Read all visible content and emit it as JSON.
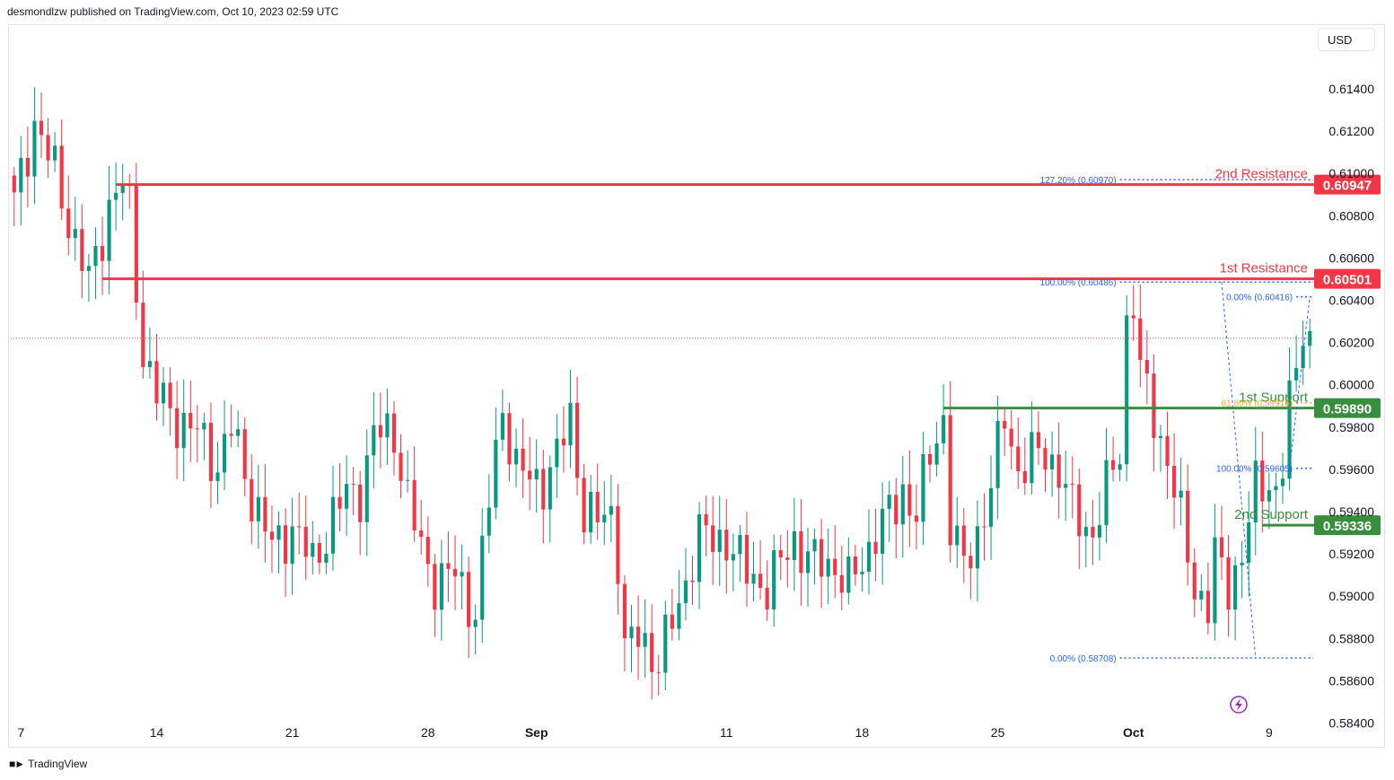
{
  "header": {
    "text": "desmondlzw published on TradingView.com, Oct 10, 2023 02:59 UTC"
  },
  "currency_button": "USD",
  "footer": {
    "brand": "TradingView",
    "logo_icon": "tradingview-logo-icon"
  },
  "colors": {
    "up": "#089981",
    "down": "#f23645",
    "resistance": "#f23645",
    "support": "#388e3c",
    "fib": "#2962ff",
    "fib_golden": "#f9a825",
    "lightning": "#9c27b0"
  },
  "chart_data": {
    "type": "candlestick",
    "symbol_currency": "USD",
    "ylim": [
      0.5833,
      0.6168
    ],
    "y_ticks": [
      "0.61400",
      "0.61200",
      "0.61000",
      "0.60800",
      "0.60600",
      "0.60400",
      "0.60200",
      "0.60000",
      "0.59800",
      "0.59600",
      "0.59400",
      "0.59200",
      "0.59000",
      "0.58800",
      "0.58600",
      "0.58400"
    ],
    "x_ticks": [
      {
        "label": "7",
        "bar": 1
      },
      {
        "label": "14",
        "bar": 21
      },
      {
        "label": "21",
        "bar": 41
      },
      {
        "label": "28",
        "bar": 61
      },
      {
        "label": "Sep",
        "bar": 77,
        "bold": true
      },
      {
        "label": "11",
        "bar": 105
      },
      {
        "label": "18",
        "bar": 125
      },
      {
        "label": "25",
        "bar": 145
      },
      {
        "label": "Oct",
        "bar": 165,
        "bold": true
      },
      {
        "label": "9",
        "bar": 185
      }
    ],
    "levels": [
      {
        "name": "2nd Resistance",
        "value": 0.60947,
        "label": "0.60947",
        "kind": "resistance",
        "from_bar": 15
      },
      {
        "name": "1st Resistance",
        "value": 0.60501,
        "label": "0.60501",
        "kind": "resistance",
        "from_bar": 13
      },
      {
        "name": "1st Support",
        "value": 0.5989,
        "label": "0.59890",
        "kind": "support",
        "from_bar": 137
      },
      {
        "name": "2nd Support",
        "value": 0.59336,
        "label": "0.59336",
        "kind": "support",
        "from_bar": 184
      }
    ],
    "fib_labels": [
      {
        "text": "127.20% (0.60970)",
        "value": 0.6097,
        "from_bar": 163,
        "golden": false
      },
      {
        "text": "100.00% (0.60486)",
        "value": 0.60486,
        "from_bar": 163,
        "golden": false
      },
      {
        "text": "0.00% (0.60416)",
        "value": 0.60416,
        "from_bar": 189,
        "golden": false
      },
      {
        "text": "61.80% (0.59915)",
        "value": 0.59915,
        "from_bar": 189,
        "golden": true
      },
      {
        "text": "100.00% (0.59605)",
        "value": 0.59605,
        "from_bar": 189,
        "golden": false
      },
      {
        "text": "0.00% (0.58708)",
        "value": 0.58708,
        "from_bar": 163,
        "golden": false
      }
    ],
    "current_price": 0.6022,
    "ohlc_summary": {
      "start_close": 0.6095,
      "high": 0.6133,
      "low": 0.5861,
      "swing_high_late_sep": 0.60486,
      "swing_low_oct": 0.58708,
      "last_high": 0.60416
    },
    "anchors": [
      [
        0,
        0.6085
      ],
      [
        3,
        0.6125
      ],
      [
        6,
        0.61
      ],
      [
        9,
        0.6068
      ],
      [
        11,
        0.6048
      ],
      [
        14,
        0.6085
      ],
      [
        16,
        0.6095
      ],
      [
        17,
        0.6082
      ],
      [
        19,
        0.6015
      ],
      [
        21,
        0.5995
      ],
      [
        24,
        0.5984
      ],
      [
        27,
        0.5977
      ],
      [
        30,
        0.5962
      ],
      [
        32,
        0.5979
      ],
      [
        35,
        0.5948
      ],
      [
        38,
        0.5923
      ],
      [
        41,
        0.5933
      ],
      [
        44,
        0.5915
      ],
      [
        47,
        0.5938
      ],
      [
        49,
        0.5948
      ],
      [
        51,
        0.595
      ],
      [
        53,
        0.5976
      ],
      [
        56,
        0.5978
      ],
      [
        58,
        0.5945
      ],
      [
        60,
        0.5922
      ],
      [
        62,
        0.5908
      ],
      [
        65,
        0.591
      ],
      [
        68,
        0.5892
      ],
      [
        70,
        0.5945
      ],
      [
        72,
        0.599
      ],
      [
        74,
        0.596
      ],
      [
        76,
        0.5955
      ],
      [
        78,
        0.5955
      ],
      [
        80,
        0.5965
      ],
      [
        82,
        0.5985
      ],
      [
        84,
        0.594
      ],
      [
        86,
        0.5935
      ],
      [
        88,
        0.594
      ],
      [
        89,
        0.592
      ],
      [
        90,
        0.5875
      ],
      [
        92,
        0.588
      ],
      [
        95,
        0.587
      ],
      [
        98,
        0.5895
      ],
      [
        100,
        0.592
      ],
      [
        101,
        0.593
      ],
      [
        103,
        0.5925
      ],
      [
        105,
        0.5928
      ],
      [
        108,
        0.591
      ],
      [
        111,
        0.5905
      ],
      [
        113,
        0.5915
      ],
      [
        115,
        0.5927
      ],
      [
        118,
        0.5915
      ],
      [
        121,
        0.5915
      ],
      [
        123,
        0.5905
      ],
      [
        125,
        0.5915
      ],
      [
        127,
        0.5932
      ],
      [
        130,
        0.5941
      ],
      [
        131,
        0.595
      ],
      [
        133,
        0.594
      ],
      [
        135,
        0.5965
      ],
      [
        137,
        0.5985
      ],
      [
        138,
        0.5935
      ],
      [
        140,
        0.5912
      ],
      [
        142,
        0.593
      ],
      [
        144,
        0.5952
      ],
      [
        146,
        0.5985
      ],
      [
        148,
        0.596
      ],
      [
        150,
        0.5965
      ],
      [
        152,
        0.5968
      ],
      [
        154,
        0.596
      ],
      [
        156,
        0.594
      ],
      [
        159,
        0.593
      ],
      [
        161,
        0.595
      ],
      [
        163,
        0.597
      ],
      [
        164,
        0.603
      ],
      [
        165,
        0.604
      ],
      [
        166,
        0.6005
      ],
      [
        168,
        0.5985
      ],
      [
        170,
        0.5965
      ],
      [
        172,
        0.5935
      ],
      [
        174,
        0.5905
      ],
      [
        176,
        0.5895
      ],
      [
        177,
        0.5918
      ],
      [
        179,
        0.5905
      ],
      [
        181,
        0.592
      ],
      [
        183,
        0.595
      ],
      [
        185,
        0.5955
      ],
      [
        186,
        0.595
      ],
      [
        187,
        0.5962
      ],
      [
        188,
        0.599
      ],
      [
        189,
        0.6005
      ],
      [
        190,
        0.603
      ],
      [
        191,
        0.6022
      ]
    ]
  }
}
